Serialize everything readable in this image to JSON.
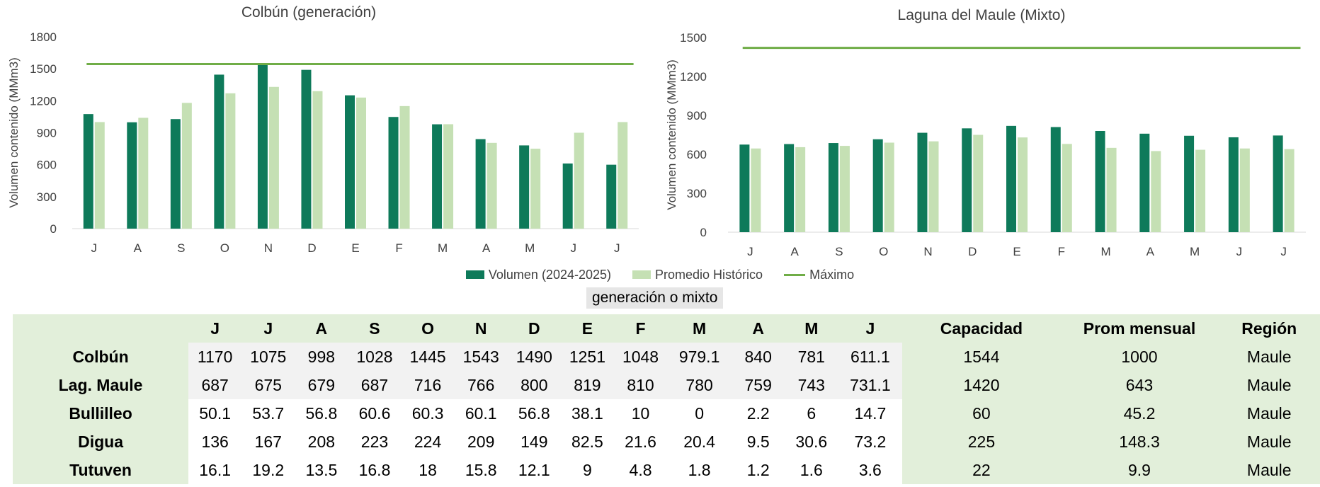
{
  "colors": {
    "volumen": "#0e7a5a",
    "promedio": "#c5e0b4",
    "maximo": "#70ad47",
    "table_header_bg": "#e2efda"
  },
  "legend": {
    "volumen": "Volumen (2024-2025)",
    "promedio": "Promedio Histórico",
    "maximo": "Máximo"
  },
  "subtitle": "generación o mixto",
  "chart_data": [
    {
      "type": "bar",
      "title": "Colbún (generación)",
      "ylabel": "Volumen contenido (MMm3)",
      "xlabel": "",
      "ylim": [
        0,
        1800
      ],
      "yticks": [
        0,
        300,
        600,
        900,
        1200,
        1500,
        1800
      ],
      "categories": [
        "J",
        "A",
        "S",
        "O",
        "N",
        "D",
        "E",
        "F",
        "M",
        "A",
        "M",
        "J",
        "J"
      ],
      "series": [
        {
          "name": "Volumen (2024-2025)",
          "values": [
            1075,
            998,
            1028,
            1445,
            1543,
            1490,
            1251,
            1048,
            979.1,
            840,
            781,
            611.1,
            600
          ]
        },
        {
          "name": "Promedio Histórico",
          "values": [
            1000,
            1040,
            1180,
            1270,
            1330,
            1290,
            1230,
            1150,
            980,
            805,
            750,
            900,
            1000
          ]
        }
      ],
      "maximo": 1544,
      "grid": false,
      "legend": "bottom"
    },
    {
      "type": "bar",
      "title": "Laguna del Maule (Mixto)",
      "ylabel": "Volumen contenido (MMm3)",
      "xlabel": "",
      "ylim": [
        0,
        1500
      ],
      "yticks": [
        0,
        300,
        600,
        900,
        1200,
        1500
      ],
      "categories": [
        "J",
        "A",
        "S",
        "O",
        "N",
        "D",
        "E",
        "F",
        "M",
        "A",
        "M",
        "J",
        "J"
      ],
      "series": [
        {
          "name": "Volumen (2024-2025)",
          "values": [
            675,
            679,
            687,
            716,
            766,
            800,
            819,
            810,
            780,
            759,
            743,
            731.1,
            745
          ]
        },
        {
          "name": "Promedio Histórico",
          "values": [
            645,
            655,
            665,
            690,
            700,
            750,
            730,
            680,
            650,
            625,
            635,
            645,
            640
          ]
        }
      ],
      "maximo": 1420,
      "grid": false,
      "legend": "bottom"
    }
  ],
  "table": {
    "headers": [
      "",
      "J",
      "J",
      "A",
      "S",
      "O",
      "N",
      "D",
      "E",
      "F",
      "M",
      "A",
      "M",
      "J",
      "Capacidad",
      "Prom mensual",
      "Región"
    ],
    "rows": [
      {
        "name": "Colbún",
        "values": [
          "1170",
          "1075",
          "998",
          "1028",
          "1445",
          "1543",
          "1490",
          "1251",
          "1048",
          "979.1",
          "840",
          "781",
          "611.1"
        ],
        "capacidad": "1544",
        "prom": "1000",
        "region": "Maule"
      },
      {
        "name": "Lag. Maule",
        "values": [
          "687",
          "675",
          "679",
          "687",
          "716",
          "766",
          "800",
          "819",
          "810",
          "780",
          "759",
          "743",
          "731.1"
        ],
        "capacidad": "1420",
        "prom": "643",
        "region": "Maule"
      },
      {
        "name": "Bullilleo",
        "values": [
          "50.1",
          "53.7",
          "56.8",
          "60.6",
          "60.3",
          "60.1",
          "56.8",
          "38.1",
          "10",
          "0",
          "2.2",
          "6",
          "14.7"
        ],
        "capacidad": "60",
        "prom": "45.2",
        "region": "Maule"
      },
      {
        "name": "Digua",
        "values": [
          "136",
          "167",
          "208",
          "223",
          "224",
          "209",
          "149",
          "82.5",
          "21.6",
          "20.4",
          "9.5",
          "30.6",
          "73.2"
        ],
        "capacidad": "225",
        "prom": "148.3",
        "region": "Maule"
      },
      {
        "name": "Tutuven",
        "values": [
          "16.1",
          "19.2",
          "13.5",
          "16.8",
          "18",
          "15.8",
          "12.1",
          "9",
          "4.8",
          "1.8",
          "1.2",
          "1.6",
          "3.6"
        ],
        "capacidad": "22",
        "prom": "9.9",
        "region": "Maule"
      }
    ]
  }
}
